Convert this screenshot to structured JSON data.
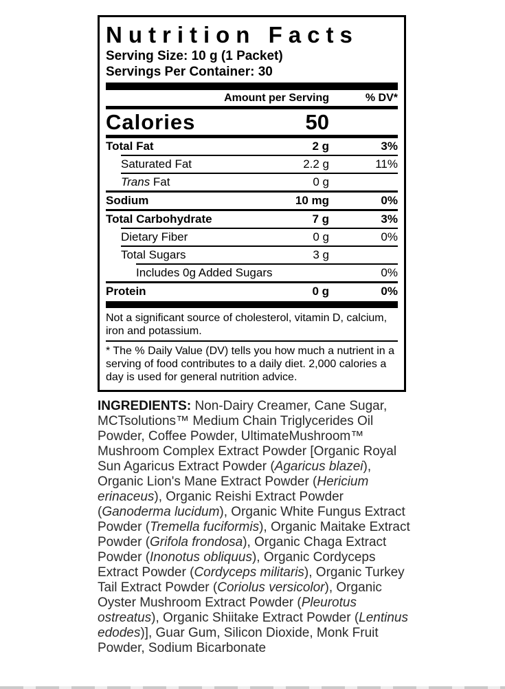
{
  "label": {
    "title": "Nutrition Facts",
    "serving_size": "Serving Size: 10 g (1 Packet)",
    "servings_per_container": "Servings Per Container: 30",
    "col_amount": "Amount per Serving",
    "col_dv": "% DV*",
    "calories_label": "Calories",
    "calories_value": "50",
    "rows": [
      {
        "name": "total-fat",
        "label": "Total Fat",
        "amount": "2 g",
        "dv": "3%",
        "bold": true,
        "indent": 0,
        "sep": "none"
      },
      {
        "name": "saturated-fat",
        "label": "Saturated Fat",
        "amount": "2.2 g",
        "dv": "11%",
        "bold": false,
        "indent": 1,
        "sep": "thin"
      },
      {
        "name": "trans-fat",
        "label_segments": [
          {
            "t": "Trans",
            "i": true
          },
          {
            "t": " Fat"
          }
        ],
        "amount": "0 g",
        "dv": "",
        "bold": false,
        "indent": 1,
        "sep": "thin"
      },
      {
        "name": "sodium",
        "label": "Sodium",
        "amount": "10 mg",
        "dv": "0%",
        "bold": true,
        "indent": 0,
        "sep": "med"
      },
      {
        "name": "total-carbohydrate",
        "label": "Total Carbohydrate",
        "amount": "7 g",
        "dv": "3%",
        "bold": true,
        "indent": 0,
        "sep": "med"
      },
      {
        "name": "dietary-fiber",
        "label": "Dietary Fiber",
        "amount": "0 g",
        "dv": "0%",
        "bold": false,
        "indent": 1,
        "sep": "thin"
      },
      {
        "name": "total-sugars",
        "label": "Total Sugars",
        "amount": "3 g",
        "dv": "",
        "bold": false,
        "indent": 1,
        "sep": "thin"
      },
      {
        "name": "added-sugars",
        "label": "Includes 0g Added Sugars",
        "amount": "",
        "dv": "0%",
        "bold": false,
        "indent": 2,
        "sep": "thin"
      },
      {
        "name": "protein",
        "label": "Protein",
        "amount": "0 g",
        "dv": "0%",
        "bold": true,
        "indent": 0,
        "sep": "med"
      }
    ],
    "not_significant": "Not a significant source of cholesterol, vitamin D, calcium, iron and potassium.",
    "dv_footnote": "* The % Daily Value (DV) tells you how much a nutrient in a serving of food contributes to a daily diet. 2,000 calories a day is used for general nutrition advice."
  },
  "ingredients": {
    "segments": [
      {
        "t": "INGREDIENTS: ",
        "b": true
      },
      {
        "t": "Non-Dairy Creamer, Cane Sugar, MCTsolutions™ Medium Chain Triglycerides Oil Powder, Coffee Powder, UltimateMushroom™ Mushroom Complex Extract Powder [Organic Royal Sun Agaricus Extract Powder ("
      },
      {
        "t": "Agaricus blazei",
        "i": true
      },
      {
        "t": "), Organic Lion's Mane Extract Powder ("
      },
      {
        "t": "Hericium erinaceus",
        "i": true
      },
      {
        "t": "), Organic Reishi Extract Powder ("
      },
      {
        "t": "Ganoderma lucidum",
        "i": true
      },
      {
        "t": "), Organic White Fungus Extract Powder ("
      },
      {
        "t": "Tremella fuciformis",
        "i": true
      },
      {
        "t": "), Organic Maitake Extract Powder ("
      },
      {
        "t": "Grifola frondosa",
        "i": true
      },
      {
        "t": "), Organic Chaga Extract Powder ("
      },
      {
        "t": "Inonotus obliquus",
        "i": true
      },
      {
        "t": "), Organic Cordyceps Extract Powder ("
      },
      {
        "t": "Cordyceps militaris",
        "i": true
      },
      {
        "t": "), Organic Turkey Tail Extract Powder ("
      },
      {
        "t": "Coriolus versicolor",
        "i": true
      },
      {
        "t": "), Organic Oyster Mushroom Extract Powder ("
      },
      {
        "t": "Pleurotus ostreatus",
        "i": true
      },
      {
        "t": "), Organic Shiitake Extract Powder ("
      },
      {
        "t": "Lentinus edodes",
        "i": true
      },
      {
        "t": ")], Guar Gum, Silicon Dioxide, Monk Fruit Powder, Sodium Bicarbonate"
      }
    ]
  }
}
